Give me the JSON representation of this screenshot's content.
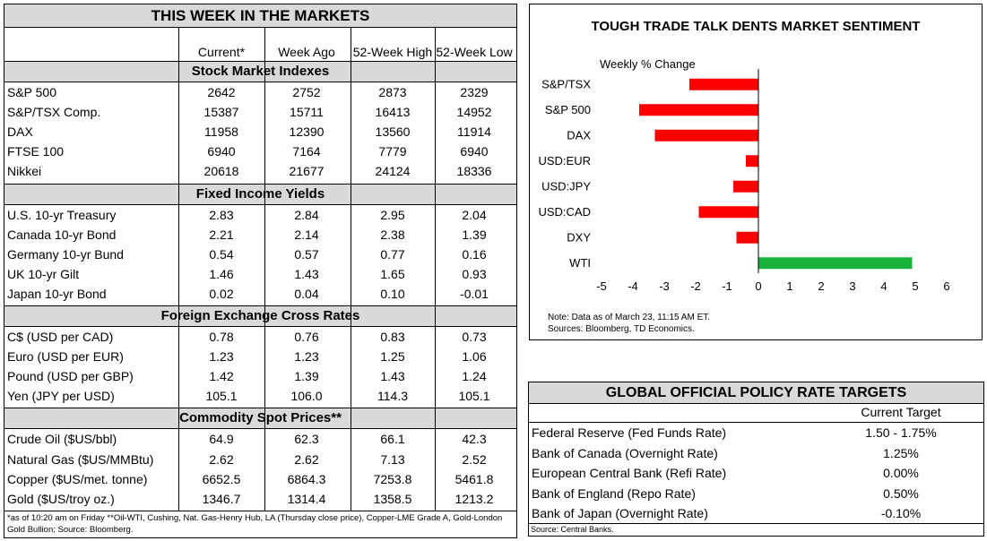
{
  "markets": {
    "title": "THIS WEEK IN THE MARKETS",
    "columns": [
      "Current*",
      "Week Ago",
      "52-Week High",
      "52-Week Low"
    ],
    "sections": [
      {
        "name": "Stock Market Indexes",
        "rows": [
          {
            "label": "S&P 500",
            "values": [
              "2642",
              "2752",
              "2873",
              "2329"
            ]
          },
          {
            "label": "S&P/TSX Comp.",
            "values": [
              "15387",
              "15711",
              "16413",
              "14952"
            ]
          },
          {
            "label": "DAX",
            "values": [
              "11958",
              "12390",
              "13560",
              "11914"
            ]
          },
          {
            "label": "FTSE 100",
            "values": [
              "6940",
              "7164",
              "7779",
              "6940"
            ]
          },
          {
            "label": "Nikkei",
            "values": [
              "20618",
              "21677",
              "24124",
              "18336"
            ]
          }
        ]
      },
      {
        "name": "Fixed Income Yields",
        "rows": [
          {
            "label": "U.S. 10-yr Treasury",
            "values": [
              "2.83",
              "2.84",
              "2.95",
              "2.04"
            ]
          },
          {
            "label": "Canada 10-yr Bond",
            "values": [
              "2.21",
              "2.14",
              "2.38",
              "1.39"
            ]
          },
          {
            "label": "Germany 10-yr Bund",
            "values": [
              "0.54",
              "0.57",
              "0.77",
              "0.16"
            ]
          },
          {
            "label": "UK 10-yr Gilt",
            "values": [
              "1.46",
              "1.43",
              "1.65",
              "0.93"
            ]
          },
          {
            "label": "Japan 10-yr Bond",
            "values": [
              "0.02",
              "0.04",
              "0.10",
              "-0.01"
            ]
          }
        ]
      },
      {
        "name": "Foreign Exchange Cross Rates",
        "rows": [
          {
            "label": "C$ (USD per CAD)",
            "values": [
              "0.78",
              "0.76",
              "0.83",
              "0.73"
            ]
          },
          {
            "label": "Euro (USD per EUR)",
            "values": [
              "1.23",
              "1.23",
              "1.25",
              "1.06"
            ]
          },
          {
            "label": "Pound (USD per GBP)",
            "values": [
              "1.42",
              "1.39",
              "1.43",
              "1.24"
            ]
          },
          {
            "label": "Yen (JPY per USD)",
            "values": [
              "105.1",
              "106.0",
              "114.3",
              "105.1"
            ]
          }
        ]
      },
      {
        "name": "Commodity Spot Prices**",
        "rows": [
          {
            "label": "Crude Oil ($US/bbl)",
            "values": [
              "64.9",
              "62.3",
              "66.1",
              "42.3"
            ]
          },
          {
            "label": "Natural Gas ($US/MMBtu)",
            "values": [
              "2.62",
              "2.62",
              "7.13",
              "2.52"
            ]
          },
          {
            "label": "Copper ($US/met. tonne)",
            "values": [
              "6652.5",
              "6864.3",
              "7253.8",
              "5461.8"
            ]
          },
          {
            "label": "Gold ($US/troy oz.)",
            "values": [
              "1346.7",
              "1314.4",
              "1358.5",
              "1213.2"
            ]
          }
        ]
      }
    ],
    "footnote": "*as of 10:20 am on Friday **Oil-WTI, Cushing, Nat. Gas-Henry Hub, LA (Thursday close price), Copper-LME Grade A, Gold-London Gold Bullion; Source: Bloomberg."
  },
  "chart_data": {
    "type": "bar",
    "orientation": "horizontal",
    "title": "TOUGH TRADE TALK DENTS MARKET SENTIMENT",
    "subtitle": "Weekly % Change",
    "categories": [
      "S&P/TSX",
      "S&P 500",
      "DAX",
      "USD:EUR",
      "USD:JPY",
      "USD:CAD",
      "DXY",
      "WTI"
    ],
    "values": [
      -2.2,
      -3.8,
      -3.3,
      -0.4,
      -0.8,
      -1.9,
      -0.7,
      4.9
    ],
    "xlim": [
      -5,
      6
    ],
    "xticks": [
      "-5",
      "-4",
      "-3",
      "-2",
      "-1",
      "0",
      "1",
      "2",
      "3",
      "4",
      "5",
      "6"
    ],
    "colors": {
      "negative": "#ff0000",
      "positive": "#19b33b"
    },
    "note": "Note: Data as of March 23, 11:15 AM ET.",
    "source": "Sources: Bloomberg, TD Economics."
  },
  "policy": {
    "title": "GLOBAL OFFICIAL POLICY RATE TARGETS",
    "column": "Current Target",
    "rows": [
      {
        "label": "Federal Reserve (Fed Funds Rate)",
        "value": "1.50 - 1.75%"
      },
      {
        "label": "Bank of Canada (Overnight Rate)",
        "value": "1.25%"
      },
      {
        "label": "European Central Bank (Refi Rate)",
        "value": "0.00%"
      },
      {
        "label": "Bank of England (Repo Rate)",
        "value": "0.50%"
      },
      {
        "label": "Bank of Japan (Overnight Rate)",
        "value": "-0.10%"
      }
    ],
    "source": "Source: Central Banks."
  }
}
